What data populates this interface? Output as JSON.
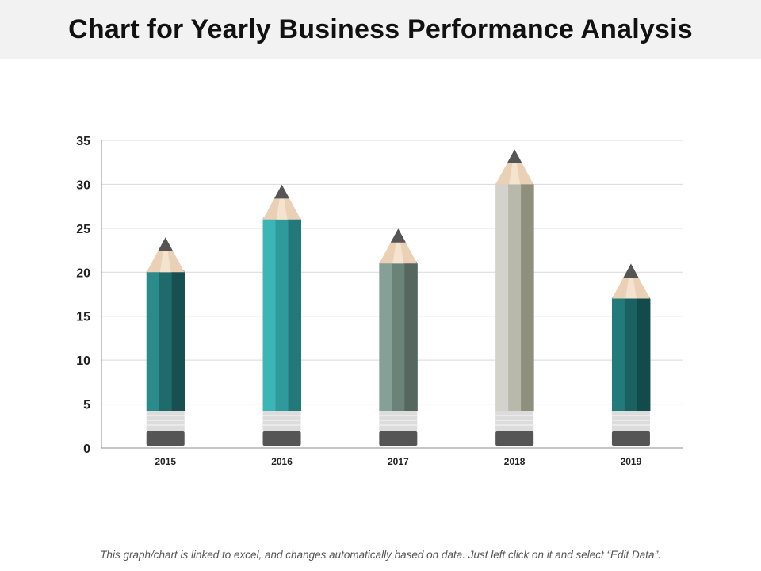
{
  "slide": {
    "footnote": "This graph/chart is linked to excel, and changes automatically based on data.  Just left click on it and select “Edit Data”."
  },
  "chart_data": {
    "type": "bar",
    "title": "Chart for Yearly Business Performance Analysis",
    "categories": [
      "2015",
      "2016",
      "2017",
      "2018",
      "2019"
    ],
    "values": [
      20,
      26,
      21,
      30,
      17
    ],
    "xlabel": "",
    "ylabel": "",
    "ylim": [
      0,
      35
    ],
    "yticks": [
      0,
      5,
      10,
      15,
      20,
      25,
      30,
      35
    ],
    "grid": true,
    "legend": "none",
    "bar_style": "pencil",
    "colors": {
      "2015": [
        "#2b8a8a",
        "#1f6b6b",
        "#184f50"
      ],
      "2016": [
        "#3bb5b5",
        "#2f9a9b",
        "#23797a"
      ],
      "2017": [
        "#85a097",
        "#6b8279",
        "#55675f"
      ],
      "2018": [
        "#d3d3cc",
        "#b9b8ad",
        "#8e8f7c"
      ],
      "2019": [
        "#237a7a",
        "#1c6162",
        "#134b4c"
      ]
    },
    "accent_colors": {
      "wood": "#ead1b5",
      "lead": "#555555",
      "ferrule": "#dcdcdc",
      "eraser": "#555555",
      "grid": "#d9d9d9",
      "axis": "#8c8c8c"
    }
  }
}
